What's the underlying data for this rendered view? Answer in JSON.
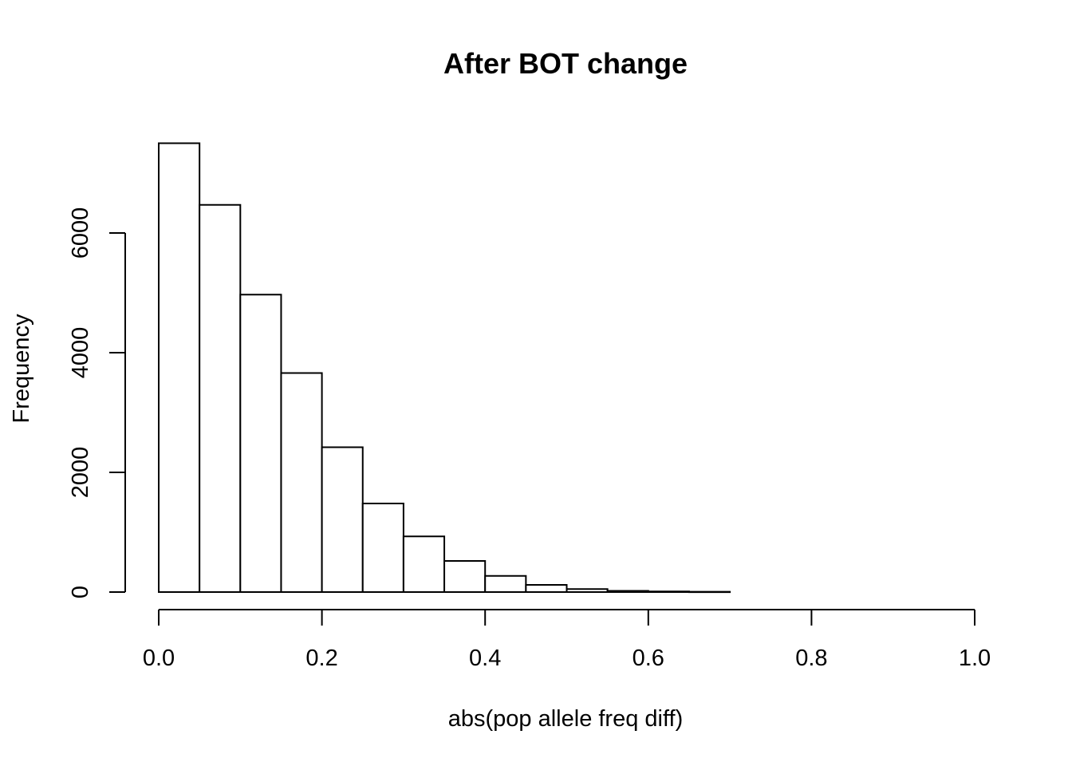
{
  "chart_data": {
    "type": "histogram",
    "title": "After BOT change",
    "xlabel": "abs(pop allele freq diff)",
    "ylabel": "Frequency",
    "xlim": [
      0,
      1
    ],
    "ylim": [
      0,
      7500
    ],
    "x_ticks": [
      0.0,
      0.2,
      0.4,
      0.6,
      0.8,
      1.0
    ],
    "x_tick_labels": [
      "0.0",
      "0.2",
      "0.4",
      "0.6",
      "0.8",
      "1.0"
    ],
    "y_ticks": [
      0,
      2000,
      4000,
      6000
    ],
    "y_tick_labels": [
      "0",
      "2000",
      "4000",
      "6000"
    ],
    "bin_edges": [
      0.0,
      0.05,
      0.1,
      0.15,
      0.2,
      0.25,
      0.3,
      0.35,
      0.4,
      0.45,
      0.5,
      0.55,
      0.6,
      0.65,
      0.7
    ],
    "counts": [
      7500,
      6470,
      4970,
      3660,
      2420,
      1480,
      930,
      520,
      270,
      120,
      50,
      20,
      10,
      5
    ],
    "grid": false,
    "colors": {
      "bar_fill": "#ffffff",
      "bar_stroke": "#000000"
    }
  }
}
